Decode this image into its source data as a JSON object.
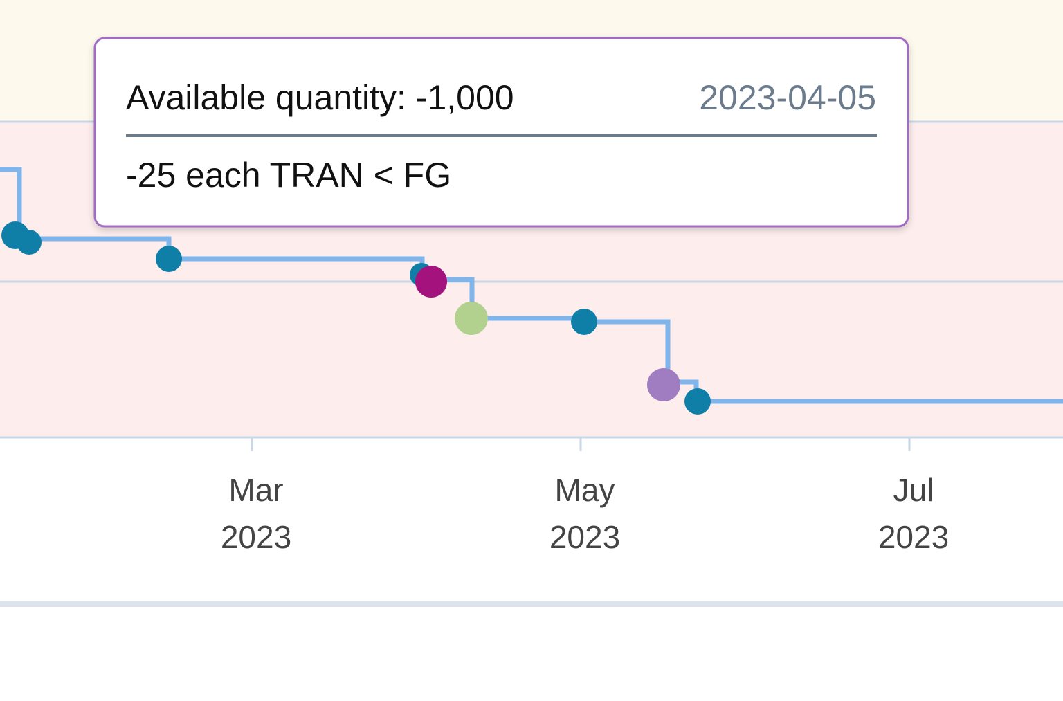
{
  "tooltip": {
    "title": "Available quantity: -1,000",
    "date": "2023-04-05",
    "detail": "-25 each TRAN < FG"
  },
  "x_axis": {
    "ticks": [
      {
        "month": "Mar",
        "year": "2023"
      },
      {
        "month": "May",
        "year": "2023"
      },
      {
        "month": "Jul",
        "year": "2023"
      }
    ]
  }
}
